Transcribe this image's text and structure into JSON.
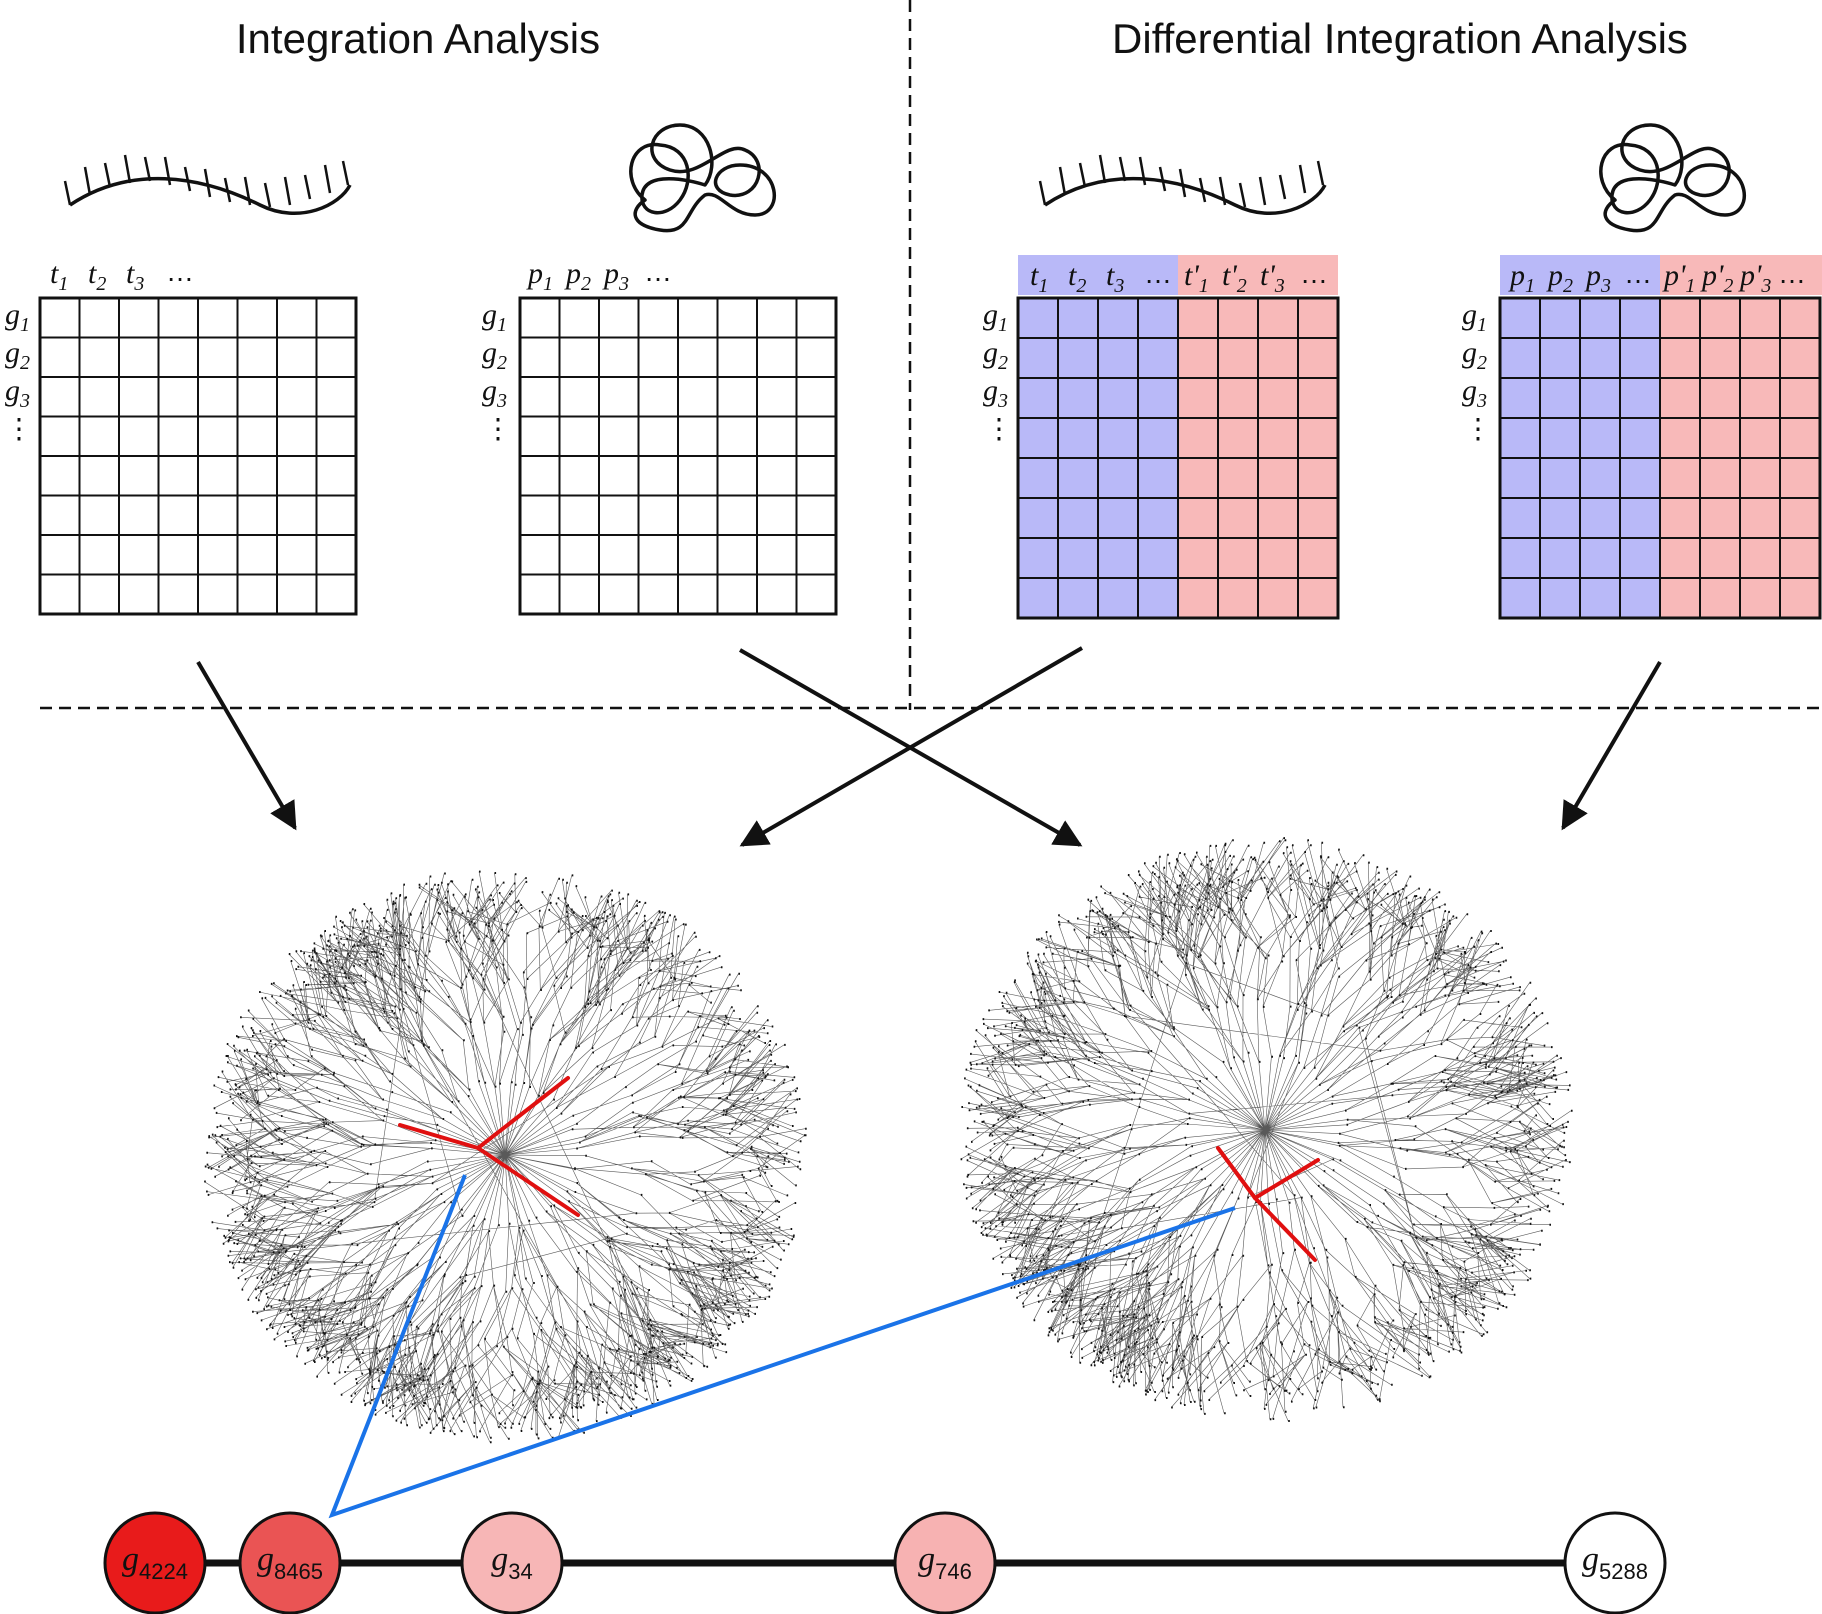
{
  "panels": {
    "left_title": "Integration Analysis",
    "right_title": "Differential Integration Analysis"
  },
  "matrices": {
    "row_labels": [
      "g1",
      "g2",
      "g3"
    ],
    "transcript_cols": [
      "t1",
      "t2",
      "t3"
    ],
    "protein_cols": [
      "p1",
      "p2",
      "p3"
    ],
    "transcript_cols_prime": [
      "t'1",
      "t'2",
      "t'3"
    ],
    "protein_cols_prime": [
      "p'1",
      "p'2",
      "p'3"
    ],
    "ellipsis": "…"
  },
  "colors": {
    "condition_a": "#b9b9f8",
    "condition_b": "#f8b9b9",
    "highlight_edges": "#e01010",
    "link_lines": "#1a73e8"
  },
  "pathway_nodes": [
    {
      "label": "g",
      "sub": "4224",
      "color": "#e81b1b"
    },
    {
      "label": "g",
      "sub": "8465",
      "color": "#ea5454"
    },
    {
      "label": "g",
      "sub": "34",
      "color": "#f7b6b6"
    },
    {
      "label": "g",
      "sub": "746",
      "color": "#f7b2b2"
    },
    {
      "label": "g",
      "sub": "5288",
      "color": "#ffffff"
    }
  ]
}
